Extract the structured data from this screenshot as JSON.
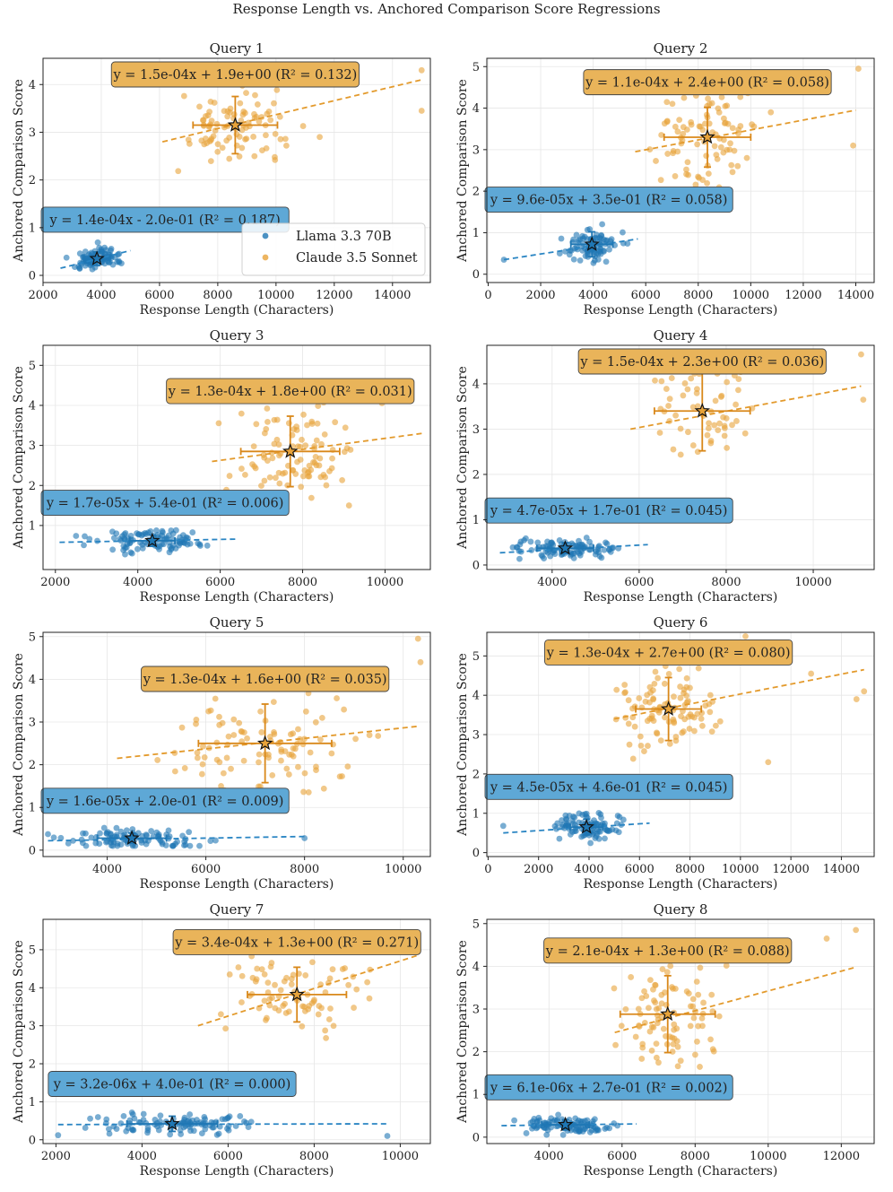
{
  "figure_title": "Response Length vs. Anchored Comparison Score Regressions",
  "colors": {
    "llama": "#1f77b4",
    "claude": "#e8a33a",
    "llama_line": "#2a85c3",
    "claude_line": "#e39a2c",
    "llama_box": "#5ea8d6",
    "claude_box": "#e9b45a",
    "claude_err": "#d9881a"
  },
  "legend": {
    "items": [
      "Llama 3.3 70B",
      "Claude 3.5 Sonnet"
    ]
  },
  "chart_data": [
    {
      "type": "scatter",
      "title": "Query 1",
      "xlabel": "Response Length (Characters)",
      "ylabel": "Anchored Comparison Score",
      "xlim": [
        2000,
        15300
      ],
      "ylim": [
        -0.15,
        4.55
      ],
      "xticks": [
        2000,
        4000,
        6000,
        8000,
        10000,
        12000,
        14000
      ],
      "yticks": [
        0,
        1,
        2,
        3,
        4
      ],
      "series": [
        {
          "name": "Llama 3.3 70B",
          "n": 90,
          "seed": 11,
          "x_range": [
            2600,
            5000
          ],
          "y_range": [
            0.0,
            0.75
          ],
          "line": {
            "x0": 2600,
            "y0": 0.15,
            "x1": 5000,
            "y1": 0.52
          },
          "mean": {
            "x": 3850,
            "y": 0.35,
            "xerr": 450,
            "yerr": 0.14
          },
          "equation": "y = 1.4e-04x - 2.0e-01 (R² = 0.187)"
        },
        {
          "name": "Claude 3.5 Sonnet",
          "n": 90,
          "seed": 12,
          "x_range": [
            6100,
            12000
          ],
          "y_range": [
            2.0,
            4.35
          ],
          "extra": [
            [
              15000,
              4.3
            ],
            [
              15000,
              3.45
            ],
            [
              11500,
              2.9
            ]
          ],
          "line": {
            "x0": 6100,
            "y0": 2.8,
            "x1": 15000,
            "y1": 4.1
          },
          "mean": {
            "x": 8600,
            "y": 3.15,
            "xerr": 1450,
            "yerr": 0.6
          },
          "equation": "y = 1.5e-04x + 1.9e+00 (R² = 0.132)"
        }
      ]
    },
    {
      "type": "scatter",
      "title": "Query 2",
      "xlabel": "Response Length (Characters)",
      "ylabel": "Anchored Comparison Score",
      "xlim": [
        -50,
        14700
      ],
      "ylim": [
        -0.2,
        5.2
      ],
      "xticks": [
        0,
        2000,
        4000,
        6000,
        8000,
        10000,
        12000,
        14000
      ],
      "yticks": [
        0,
        1,
        2,
        3,
        4,
        5
      ],
      "series": [
        {
          "name": "Llama 3.3 70B",
          "n": 90,
          "seed": 21,
          "x_range": [
            2700,
            5700
          ],
          "y_range": [
            0.1,
            1.45
          ],
          "extra": [
            [
              600,
              0.35
            ]
          ],
          "line": {
            "x0": 600,
            "y0": 0.35,
            "x1": 5700,
            "y1": 0.85
          },
          "mean": {
            "x": 3950,
            "y": 0.72,
            "xerr": 800,
            "yerr": 0.3
          },
          "equation": "y = 9.6e-05x + 3.5e-01 (R² = 0.058)"
        },
        {
          "name": "Claude 3.5 Sonnet",
          "n": 90,
          "seed": 22,
          "x_range": [
            5600,
            11500
          ],
          "y_range": [
            1.5,
            5.1
          ],
          "extra": [
            [
              14100,
              4.95
            ],
            [
              13900,
              3.1
            ]
          ],
          "line": {
            "x0": 5600,
            "y0": 2.95,
            "x1": 14000,
            "y1": 3.95
          },
          "mean": {
            "x": 8350,
            "y": 3.3,
            "xerr": 1650,
            "yerr": 0.72
          },
          "equation": "y = 1.1e-04x + 2.4e+00 (R² = 0.058)"
        }
      ]
    },
    {
      "type": "scatter",
      "title": "Query 3",
      "xlabel": "Response Length (Characters)",
      "ylabel": "Anchored Comparison Score",
      "xlim": [
        1700,
        11100
      ],
      "ylim": [
        -0.1,
        5.5
      ],
      "xticks": [
        2000,
        4000,
        6000,
        8000,
        10000
      ],
      "yticks": [
        1,
        2,
        3,
        4,
        5
      ],
      "series": [
        {
          "name": "Llama 3.3 70B",
          "n": 100,
          "seed": 31,
          "x_range": [
            2100,
            6400
          ],
          "y_range": [
            0.25,
            1.1
          ],
          "line": {
            "x0": 2100,
            "y0": 0.58,
            "x1": 6400,
            "y1": 0.66
          },
          "mean": {
            "x": 4350,
            "y": 0.62,
            "xerr": 550,
            "yerr": 0.14
          },
          "equation": "y = 1.7e-05x + 5.4e-01 (R² = 0.006)"
        },
        {
          "name": "Claude 3.5 Sonnet",
          "n": 100,
          "seed": 32,
          "x_range": [
            5800,
            10900
          ],
          "y_range": [
            1.5,
            5.3
          ],
          "line": {
            "x0": 5800,
            "y0": 2.6,
            "x1": 10900,
            "y1": 3.3
          },
          "mean": {
            "x": 7700,
            "y": 2.85,
            "xerr": 1200,
            "yerr": 0.88
          },
          "equation": "y = 1.3e-04x + 1.8e+00 (R² = 0.031)"
        }
      ]
    },
    {
      "type": "scatter",
      "title": "Query 4",
      "xlabel": "Response Length (Characters)",
      "ylabel": "Anchored Comparison Score",
      "xlim": [
        2500,
        11400
      ],
      "ylim": [
        -0.1,
        4.85
      ],
      "xticks": [
        4000,
        6000,
        8000,
        10000
      ],
      "yticks": [
        0,
        1,
        2,
        3,
        4
      ],
      "series": [
        {
          "name": "Llama 3.3 70B",
          "n": 100,
          "seed": 41,
          "x_range": [
            2800,
            6300
          ],
          "y_range": [
            0.1,
            0.8
          ],
          "line": {
            "x0": 2800,
            "y0": 0.27,
            "x1": 6200,
            "y1": 0.45
          },
          "mean": {
            "x": 4300,
            "y": 0.37,
            "xerr": 650,
            "yerr": 0.12
          },
          "equation": "y = 4.7e-05x + 1.7e-01 (R² = 0.045)"
        },
        {
          "name": "Claude 3.5 Sonnet",
          "n": 60,
          "seed": 42,
          "x_range": [
            5700,
            9300
          ],
          "y_range": [
            1.5,
            4.55
          ],
          "extra": [
            [
              11100,
              4.65
            ],
            [
              11150,
              3.65
            ]
          ],
          "line": {
            "x0": 5800,
            "y0": 3.0,
            "x1": 11100,
            "y1": 3.95
          },
          "mean": {
            "x": 7450,
            "y": 3.4,
            "xerr": 1100,
            "yerr": 0.88
          },
          "equation": "y = 1.5e-04x + 2.3e+00 (R² = 0.036)"
        }
      ]
    },
    {
      "type": "scatter",
      "title": "Query 5",
      "xlabel": "Response Length (Characters)",
      "ylabel": "Anchored Comparison Score",
      "xlim": [
        2700,
        10550
      ],
      "ylim": [
        -0.15,
        5.1
      ],
      "xticks": [
        4000,
        6000,
        8000,
        10000
      ],
      "yticks": [
        0,
        1,
        2,
        3,
        4,
        5
      ],
      "series": [
        {
          "name": "Llama 3.3 70B",
          "n": 100,
          "seed": 51,
          "x_range": [
            2800,
            7100
          ],
          "y_range": [
            0.1,
            0.85
          ],
          "extra": [
            [
              8000,
              0.28
            ]
          ],
          "line": {
            "x0": 2800,
            "y0": 0.22,
            "x1": 8000,
            "y1": 0.32
          },
          "mean": {
            "x": 4500,
            "y": 0.28,
            "xerr": 700,
            "yerr": 0.12
          },
          "equation": "y = 1.6e-05x + 2.0e-01 (R² = 0.009)"
        },
        {
          "name": "Claude 3.5 Sonnet",
          "n": 100,
          "seed": 52,
          "x_range": [
            4200,
            10000
          ],
          "y_range": [
            1.2,
            4.7
          ],
          "extra": [
            [
              10300,
              4.95
            ],
            [
              10350,
              4.4
            ]
          ],
          "line": {
            "x0": 4200,
            "y0": 2.15,
            "x1": 10300,
            "y1": 2.9
          },
          "mean": {
            "x": 7200,
            "y": 2.5,
            "xerr": 1350,
            "yerr": 0.92
          },
          "equation": "y = 1.3e-04x + 1.6e+00 (R² = 0.035)"
        }
      ]
    },
    {
      "type": "scatter",
      "title": "Query 6",
      "xlabel": "Response Length (Characters)",
      "ylabel": "Anchored Comparison Score",
      "xlim": [
        -50,
        15300
      ],
      "ylim": [
        -0.1,
        5.6
      ],
      "xticks": [
        0,
        2000,
        4000,
        6000,
        8000,
        10000,
        12000,
        14000
      ],
      "yticks": [
        0,
        1,
        2,
        3,
        4,
        5
      ],
      "series": [
        {
          "name": "Llama 3.3 70B",
          "n": 100,
          "seed": 61,
          "x_range": [
            2000,
            6400
          ],
          "y_range": [
            0.2,
            1.25
          ],
          "extra": [
            [
              600,
              0.68
            ]
          ],
          "line": {
            "x0": 600,
            "y0": 0.5,
            "x1": 6400,
            "y1": 0.75
          },
          "mean": {
            "x": 3900,
            "y": 0.65,
            "xerr": 650,
            "yerr": 0.2
          },
          "equation": "y = 4.5e-05x + 4.6e-01 (R² = 0.045)"
        },
        {
          "name": "Claude 3.5 Sonnet",
          "n": 100,
          "seed": 62,
          "x_range": [
            4800,
            10500
          ],
          "y_range": [
            2.3,
            5.3
          ],
          "extra": [
            [
              14900,
              4.1
            ],
            [
              14600,
              3.9
            ],
            [
              12800,
              4.55
            ],
            [
              11100,
              2.3
            ],
            [
              10200,
              5.5
            ]
          ],
          "line": {
            "x0": 5000,
            "y0": 3.4,
            "x1": 14900,
            "y1": 4.65
          },
          "mean": {
            "x": 7150,
            "y": 3.65,
            "xerr": 1300,
            "yerr": 0.8
          },
          "equation": "y = 1.3e-04x + 2.7e+00 (R² = 0.080)"
        }
      ]
    },
    {
      "type": "scatter",
      "title": "Query 7",
      "xlabel": "Response Length (Characters)",
      "ylabel": "Anchored Comparison Score",
      "xlim": [
        1700,
        10700
      ],
      "ylim": [
        -0.1,
        5.8
      ],
      "xticks": [
        2000,
        4000,
        6000,
        8000,
        10000
      ],
      "yticks": [
        0,
        1,
        2,
        3,
        4,
        5
      ],
      "series": [
        {
          "name": "Llama 3.3 70B",
          "n": 100,
          "seed": 71,
          "x_range": [
            2500,
            7800
          ],
          "y_range": [
            0.05,
            0.9
          ],
          "extra": [
            [
              2050,
              0.12
            ],
            [
              9700,
              0.1
            ]
          ],
          "line": {
            "x0": 2050,
            "y0": 0.4,
            "x1": 9700,
            "y1": 0.42
          },
          "mean": {
            "x": 4700,
            "y": 0.42,
            "xerr": 1050,
            "yerr": 0.2
          },
          "equation": "y = 3.2e-06x + 4.0e-01 (R² = 0.000)"
        },
        {
          "name": "Claude 3.5 Sonnet",
          "n": 80,
          "seed": 72,
          "x_range": [
            5200,
            10400
          ],
          "y_range": [
            2.2,
            5.5
          ],
          "line": {
            "x0": 5300,
            "y0": 3.0,
            "x1": 10400,
            "y1": 4.85
          },
          "mean": {
            "x": 7600,
            "y": 3.82,
            "xerr": 1150,
            "yerr": 0.72
          },
          "equation": "y = 3.4e-04x + 1.3e+00 (R² = 0.271)"
        }
      ]
    },
    {
      "type": "scatter",
      "title": "Query 8",
      "xlabel": "Response Length (Characters)",
      "ylabel": "Anchored Comparison Score",
      "xlim": [
        2300,
        12900
      ],
      "ylim": [
        -0.15,
        5.1
      ],
      "xticks": [
        4000,
        6000,
        8000,
        10000,
        12000
      ],
      "yticks": [
        0,
        1,
        2,
        3,
        4,
        5
      ],
      "series": [
        {
          "name": "Llama 3.3 70B",
          "n": 100,
          "seed": 81,
          "x_range": [
            2700,
            6500
          ],
          "y_range": [
            0.05,
            0.75
          ],
          "line": {
            "x0": 2700,
            "y0": 0.27,
            "x1": 6400,
            "y1": 0.31
          },
          "mean": {
            "x": 4450,
            "y": 0.29,
            "xerr": 650,
            "yerr": 0.12
          },
          "equation": "y = 6.1e-06x + 2.7e-01 (R² = 0.002)"
        },
        {
          "name": "Claude 3.5 Sonnet",
          "n": 90,
          "seed": 82,
          "x_range": [
            5600,
            10000
          ],
          "y_range": [
            1.5,
            4.9
          ],
          "extra": [
            [
              12400,
              4.85
            ],
            [
              11600,
              4.65
            ]
          ],
          "line": {
            "x0": 5800,
            "y0": 2.45,
            "x1": 12400,
            "y1": 3.98
          },
          "mean": {
            "x": 7250,
            "y": 2.88,
            "xerr": 1300,
            "yerr": 0.9
          },
          "equation": "y = 2.1e-04x + 1.3e+00 (R² = 0.088)"
        }
      ]
    }
  ]
}
